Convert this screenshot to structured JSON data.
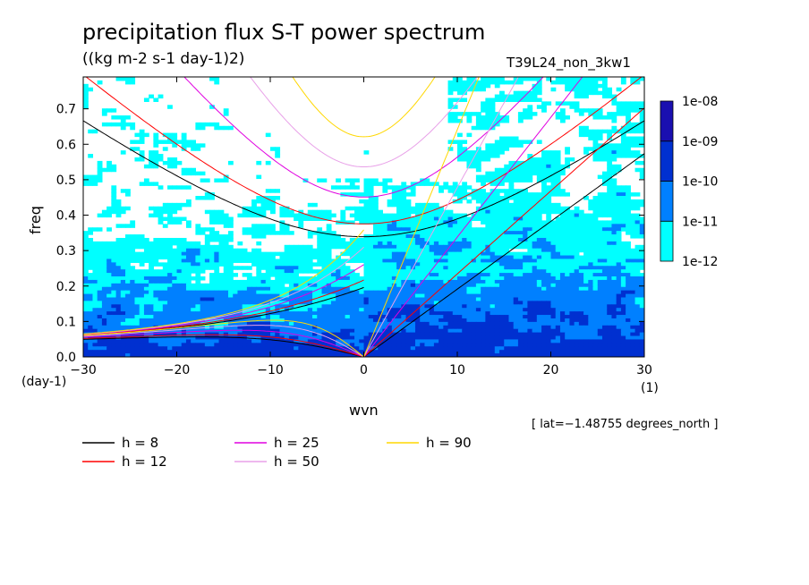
{
  "chart_data": {
    "type": "heatmap",
    "title": "precipitation flux S-T power spectrum",
    "units": "((kg m-2 s-1 day-1)2)",
    "run_label": "T39L24_non_3kw1",
    "xlabel": "wvn",
    "ylabel": "freq",
    "x_unit": "(1)",
    "y_unit": "(day-1)",
    "xlim": [
      -30,
      30
    ],
    "ylim": [
      0.0,
      0.79
    ],
    "x_ticks": [
      -30,
      -20,
      -10,
      0,
      10,
      20,
      30
    ],
    "x_tick_labels": [
      "−30",
      "−20",
      "−10",
      "0",
      "10",
      "20",
      "30"
    ],
    "y_ticks": [
      0.0,
      0.1,
      0.2,
      0.3,
      0.4,
      0.5,
      0.6,
      0.7
    ],
    "y_tick_labels": [
      "0.0",
      "0.1",
      "0.2",
      "0.3",
      "0.4",
      "0.5",
      "0.6",
      "0.7"
    ],
    "info": "[ lat=−1.48755 degrees_north ]",
    "colorbar": {
      "levels": [
        "1e-12",
        "1e-11",
        "1e-10",
        "1e-09",
        "1e-08"
      ],
      "colors": [
        "#00ffff",
        "#0080ff",
        "#0030d0",
        "#1a0fb0"
      ]
    },
    "series": [
      {
        "name": "h =  8",
        "h": 8,
        "color": "#000000"
      },
      {
        "name": "h = 12",
        "h": 12,
        "color": "#ff0000"
      },
      {
        "name": "h = 25",
        "h": 25,
        "color": "#e000e0"
      },
      {
        "name": "h = 50",
        "h": 50,
        "color": "#e8a0e8"
      },
      {
        "name": "h = 90",
        "h": 90,
        "color": "#ffd700"
      }
    ]
  }
}
